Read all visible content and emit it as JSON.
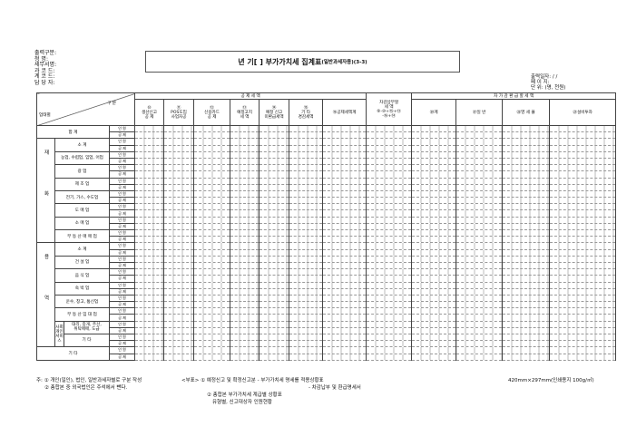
{
  "meta": {
    "output_type": "출력구분:",
    "name": "청    명:",
    "tax_office": "세무서명:",
    "section_code": "과 코 드:",
    "account_code": "계 코 드:",
    "manager": "담 당 자:"
  },
  "title": {
    "main": "년  기[     ] 부가가치세 집계표",
    "sub": "(일반과세자용)(3-3)"
  },
  "right_meta": {
    "print_date": "출력일자:  /   /",
    "page": "페 이 지:",
    "unit": "단    위: (명, 천원)"
  },
  "header": {
    "gubun": "구 분",
    "biz_type": "업태별",
    "deduction_group": "공   제   세   액",
    "deduction_cols": [
      "⑩\n생산신고\n공    제",
      "⑪\nPOS도입\n사업자공",
      "⑫\n신용카드\n공    제",
      "⑬\n예정고지\n세    액",
      "⑭\n예정   신고\n미환급세액",
      "⑮\n기    타\n경감세액",
      "⑯공제세액계"
    ],
    "payable": "차감납부할\n세    액\n⑨-⑩+⑮+⑬\n-⑯+⑭",
    "refund_group": "차  가  감  환  급  할  세  액",
    "refund_cols": [
      "⑳계",
      "㉑일          반",
      "㉒영  세  율",
      "㉓설비투자"
    ]
  },
  "sub_labels": [
    "인 원",
    "공 제"
  ],
  "rows": [
    {
      "group": "",
      "label": "합          계"
    },
    {
      "group": "재화",
      "label": "소          계"
    },
    {
      "group": "재화",
      "label": "농업, 수렵업, 임업, 어업"
    },
    {
      "group": "재화",
      "label": "광          업"
    },
    {
      "group": "재화",
      "label": "제   조   업"
    },
    {
      "group": "재화",
      "label": "전기, 가스, 수도업"
    },
    {
      "group": "재화",
      "label": "도   매   업"
    },
    {
      "group": "재화",
      "label": "소   매   업"
    },
    {
      "group": "재화",
      "label": "부 동 산 매 매 업"
    },
    {
      "group": "용역",
      "label": "소          계"
    },
    {
      "group": "용역",
      "label": "건   설   업"
    },
    {
      "group": "용역",
      "label": "음   식   업"
    },
    {
      "group": "용역",
      "label": "숙   박   업"
    },
    {
      "group": "용역",
      "label": "운수, 창고, 통신업"
    },
    {
      "group": "용역",
      "label": "부 동 산 임 대 업"
    },
    {
      "group": "용역",
      "sub_group": "사회\n개인\n서비\n스",
      "label": "대리, 중개, 주선,\n위탁매매, 도급"
    },
    {
      "group": "용역",
      "sub_group": "사회\n개인\n서비\n스",
      "label": "기          타"
    },
    {
      "group": "",
      "label": "기          타"
    }
  ],
  "notes": {
    "n1": "주: ① 개인(일인), 법인, 일반과세자별로 구분 작성",
    "n2": "② 총합본 중 외국법인은 주석에서 뺀다.",
    "a1": "<부표> ① 예정신고 및 확정신고분 - 부가가치세 명세를 적용상황표",
    "a2": "- 차감납부 및 환급명세서",
    "a3": "② 총합본 부가가치세 계급별 상황표",
    "a4": "유형별, 신고대상자 인원현황",
    "paper": "420mm×297mm(인쇄용지 100g/㎡)"
  }
}
